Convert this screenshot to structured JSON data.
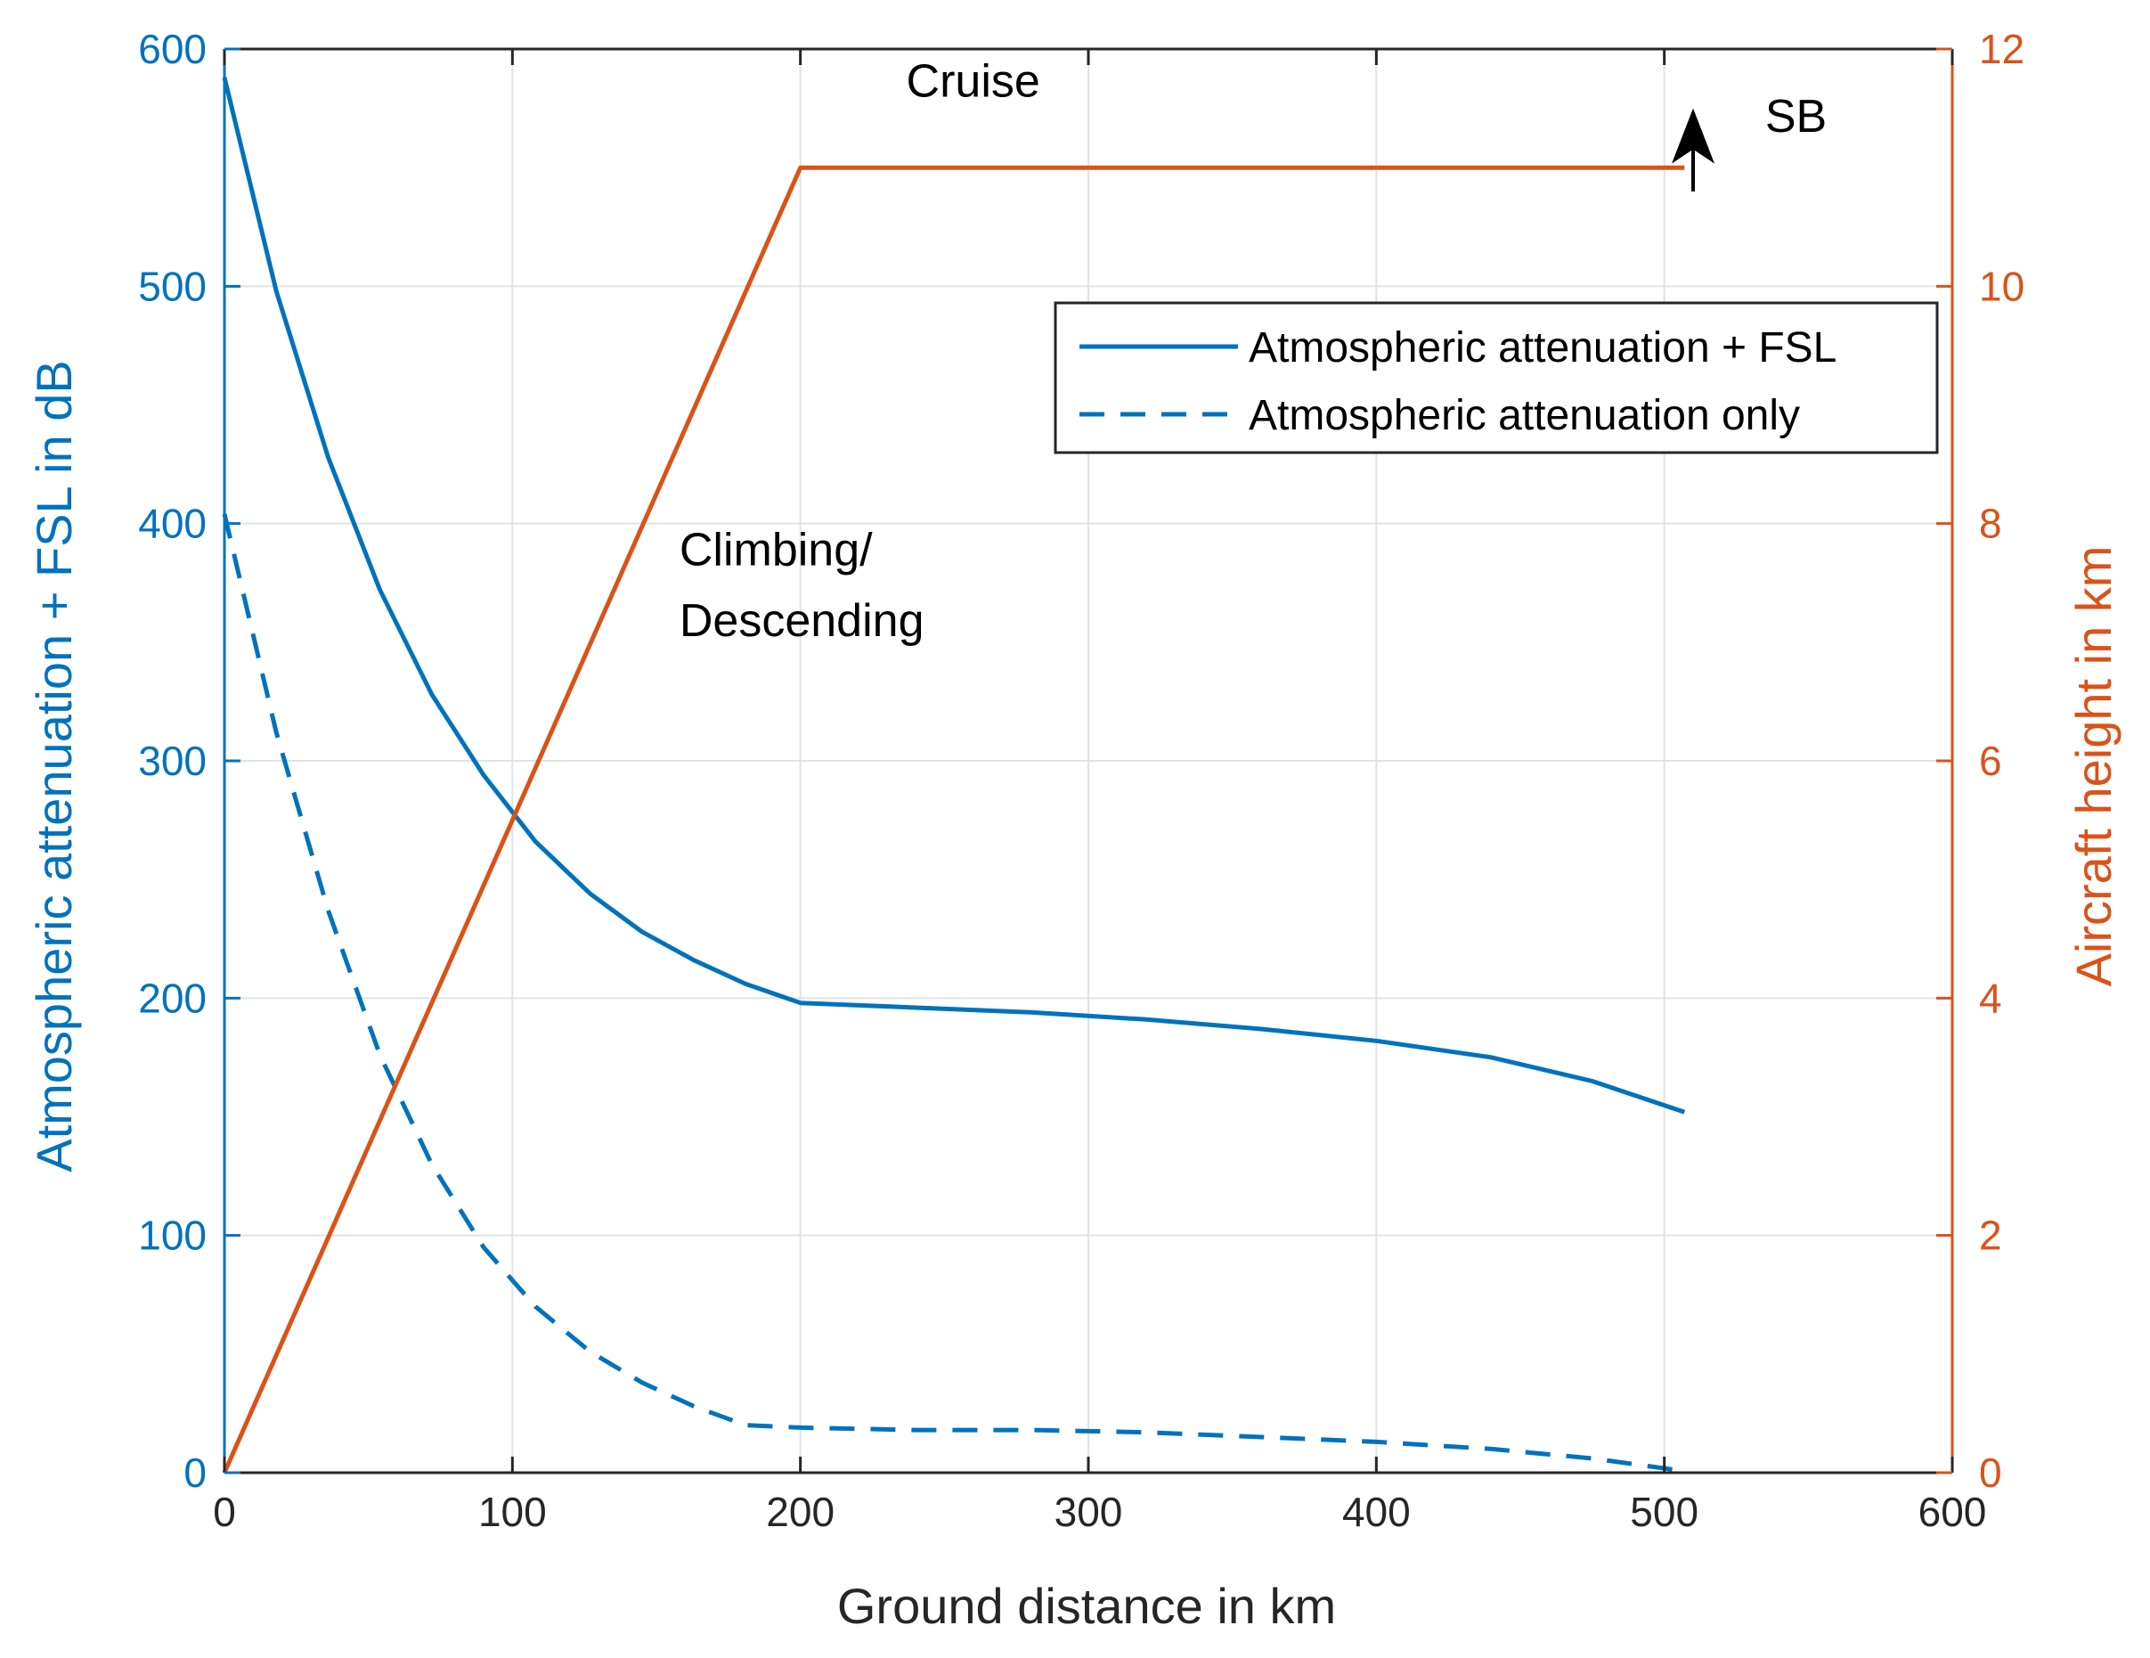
{
  "chart_data": {
    "type": "line",
    "title": "",
    "xlabel": "Ground distance in km",
    "ylabel_left": "Atmospheric attenuation + FSL in dB",
    "ylabel_right": "Aircraft height in km",
    "xlim": [
      0,
      600
    ],
    "ylim_left": [
      0,
      600
    ],
    "ylim_right": [
      0,
      12
    ],
    "x_ticks": [
      0,
      100,
      200,
      300,
      400,
      500,
      600
    ],
    "y_left_ticks": [
      0,
      100,
      200,
      300,
      400,
      500,
      600
    ],
    "y_right_ticks": [
      0,
      2,
      4,
      6,
      8,
      10,
      12
    ],
    "grid": true,
    "legend_position": "top-right",
    "colors": {
      "left_axis": "#0072BD",
      "right_axis": "#D95319",
      "grid": "#dfe3e8",
      "text": "#262626"
    },
    "series": [
      {
        "name": "Atmospheric attenuation + FSL",
        "axis": "left",
        "style": "solid",
        "x": [
          0,
          18,
          36,
          54,
          72,
          90,
          108,
          127,
          145,
          163,
          181,
          200,
          240,
          280,
          320,
          360,
          400,
          440,
          475,
          507
        ],
        "y": [
          588,
          498,
          428,
          372,
          328,
          294,
          266,
          244,
          228,
          216,
          206,
          198,
          196,
          194,
          191,
          187,
          182,
          175,
          165,
          152
        ]
      },
      {
        "name": "Atmospheric attenuation only",
        "axis": "left",
        "style": "dashed",
        "x": [
          0,
          18,
          36,
          54,
          72,
          90,
          108,
          127,
          145,
          163,
          181,
          200,
          240,
          280,
          320,
          360,
          400,
          440,
          475,
          505
        ],
        "y": [
          404,
          312,
          237,
          176,
          130,
          95,
          70,
          51,
          38,
          28,
          20,
          19,
          18,
          18,
          17,
          15,
          13,
          10,
          6,
          1
        ]
      },
      {
        "name": "Aircraft height",
        "axis": "right",
        "style": "solid",
        "x": [
          0,
          200,
          507
        ],
        "y": [
          0,
          11,
          11
        ]
      }
    ],
    "annotations": [
      {
        "text": "Cruise",
        "x": 260,
        "y_right": 11.6
      },
      {
        "text": "Climbing/",
        "x": 158,
        "y_right": 7.65
      },
      {
        "text": "Descending",
        "x": 158,
        "y_right": 7.05
      },
      {
        "text": "SB",
        "x": 535,
        "y_right": 11.3
      }
    ],
    "arrow": {
      "x": 510,
      "y_right_from": 10.8,
      "y_right_to": 11.5
    }
  }
}
